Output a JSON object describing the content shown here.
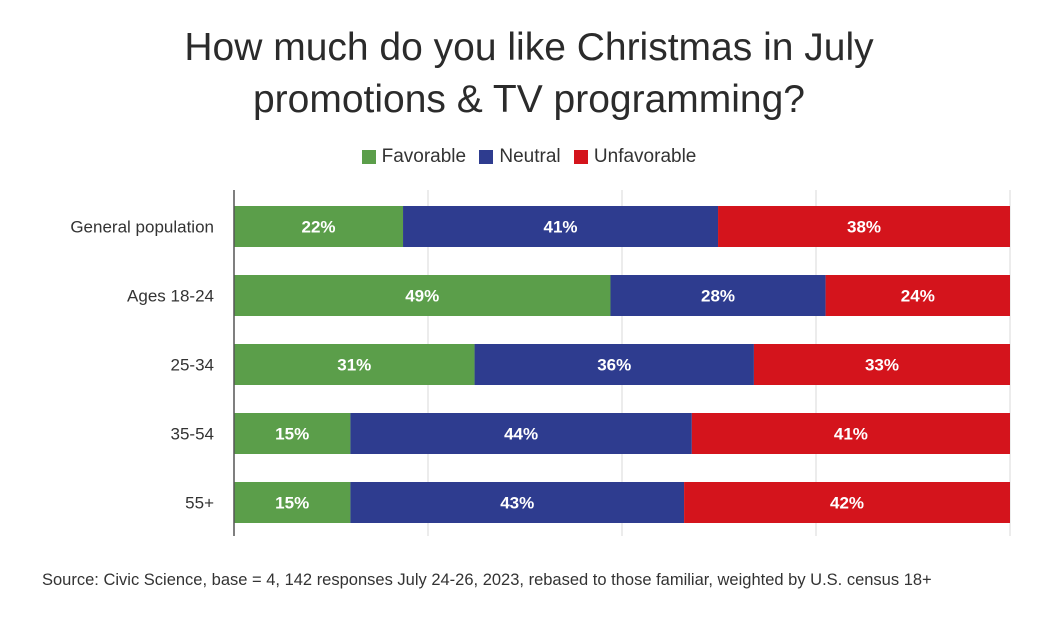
{
  "chart_data": {
    "type": "bar",
    "orientation": "horizontal",
    "stacked": true,
    "title_line1": "How much do you like Christmas in July",
    "title_line2": "promotions & TV programming?",
    "categories": [
      "General population",
      "Ages 18-24",
      "25-34",
      "35-54",
      "55+"
    ],
    "series": [
      {
        "name": "Favorable",
        "color": "#5b9e4a",
        "values": [
          22,
          49,
          31,
          15,
          15
        ]
      },
      {
        "name": "Neutral",
        "color": "#2e3c8f",
        "values": [
          41,
          28,
          36,
          44,
          43
        ]
      },
      {
        "name": "Unfavorable",
        "color": "#d4141c",
        "values": [
          38,
          24,
          33,
          41,
          42
        ]
      }
    ],
    "value_suffix": "%",
    "xlim": [
      0,
      100
    ],
    "grid": true,
    "legend_position": "top-center",
    "source": "Source: Civic Science, base = 4, 142 responses July 24-26, 2023, rebased to those familiar, weighted by U.S. census 18+"
  }
}
